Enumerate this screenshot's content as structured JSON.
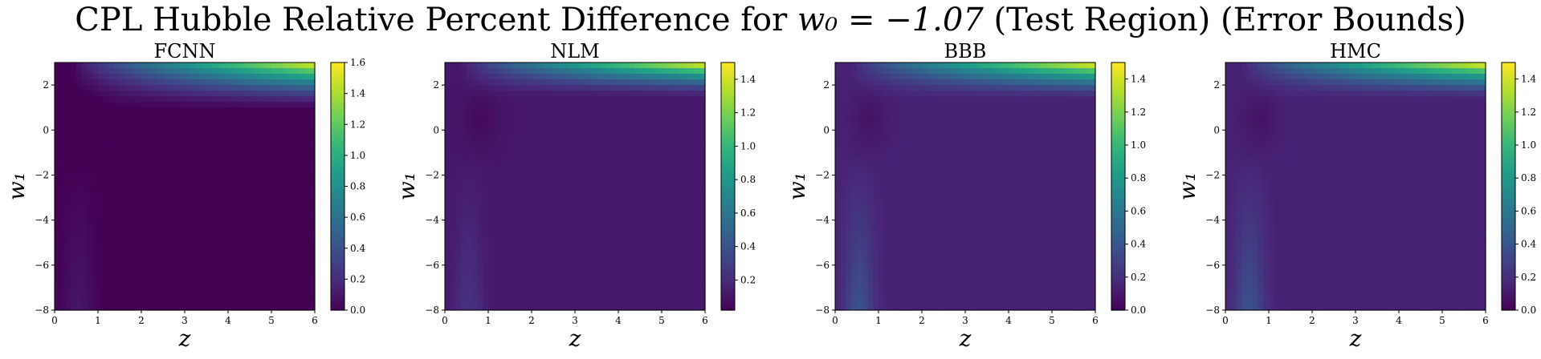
{
  "figure": {
    "title_prefix": "CPL Hubble Relative Percent Difference for ",
    "title_math": "w₀ = −1.07",
    "title_suffix": " (Test Region) (Error Bounds)"
  },
  "colormap": {
    "name": "viridis",
    "stops": [
      "#440154",
      "#482878",
      "#3e4989",
      "#31688e",
      "#26828e",
      "#1f9e89",
      "#35b779",
      "#6ece58",
      "#b5de2b",
      "#fde725"
    ]
  },
  "chart_data": [
    {
      "type": "heatmap",
      "title": "FCNN",
      "xlabel": "z",
      "ylabel": "w₁",
      "xlim": [
        0,
        6
      ],
      "ylim": [
        -8,
        3
      ],
      "xticks": [
        0,
        1,
        2,
        3,
        4,
        5,
        6
      ],
      "yticks": [
        2,
        0,
        -2,
        -4,
        -6,
        -8
      ],
      "colorbar": {
        "vmin": 0.0,
        "vmax": 1.6,
        "ticks": [
          0.0,
          0.2,
          0.4,
          0.6,
          0.8,
          1.0,
          1.2,
          1.4,
          1.6
        ],
        "tick_labels": [
          "0.0",
          "0.2",
          "0.4",
          "0.6",
          "0.8",
          "1.0",
          "1.2",
          "1.4",
          "1.6"
        ]
      },
      "field": {
        "peak": 1.6,
        "background": 0.0,
        "band_threshold_w1": 0.8,
        "low_z_band_value": 0.08,
        "mid_level": 0.0
      }
    },
    {
      "type": "heatmap",
      "title": "NLM",
      "xlabel": "z",
      "ylabel": "w₁",
      "xlim": [
        0,
        6
      ],
      "ylim": [
        -8,
        3
      ],
      "xticks": [
        0,
        1,
        2,
        3,
        4,
        5,
        6
      ],
      "yticks": [
        2,
        0,
        -2,
        -4,
        -6,
        -8
      ],
      "colorbar": {
        "vmin": 0.02,
        "vmax": 1.5,
        "ticks": [
          0.2,
          0.4,
          0.6,
          0.8,
          1.0,
          1.2,
          1.4
        ],
        "tick_labels": [
          "0.2",
          "0.4",
          "0.6",
          "0.8",
          "1.0",
          "1.2",
          "1.4"
        ]
      },
      "field": {
        "peak": 1.5,
        "background": 0.08,
        "band_threshold_w1": 1.4,
        "low_z_band_value": 0.1,
        "mid_level": 0.12
      }
    },
    {
      "type": "heatmap",
      "title": "BBB",
      "xlabel": "z",
      "ylabel": "w₁",
      "xlim": [
        0,
        6
      ],
      "ylim": [
        -8,
        3
      ],
      "xticks": [
        0,
        1,
        2,
        3,
        4,
        5,
        6
      ],
      "yticks": [
        2,
        0,
        -2,
        -4,
        -6,
        -8
      ],
      "colorbar": {
        "vmin": 0.0,
        "vmax": 1.5,
        "ticks": [
          0.0,
          0.2,
          0.4,
          0.6,
          0.8,
          1.0,
          1.2,
          1.4
        ],
        "tick_labels": [
          "0.0",
          "0.2",
          "0.4",
          "0.6",
          "0.8",
          "1.0",
          "1.2",
          "1.4"
        ]
      },
      "field": {
        "peak": 1.5,
        "background": 0.1,
        "band_threshold_w1": 1.3,
        "low_z_band_value": 0.2,
        "mid_level": 0.13
      }
    },
    {
      "type": "heatmap",
      "title": "HMC",
      "xlabel": "z",
      "ylabel": "w₁",
      "xlim": [
        0,
        6
      ],
      "ylim": [
        -8,
        3
      ],
      "xticks": [
        0,
        1,
        2,
        3,
        4,
        5,
        6
      ],
      "yticks": [
        2,
        0,
        -2,
        -4,
        -6,
        -8
      ],
      "colorbar": {
        "vmin": 0.0,
        "vmax": 1.5,
        "ticks": [
          0.0,
          0.2,
          0.4,
          0.6,
          0.8,
          1.0,
          1.2,
          1.4
        ],
        "tick_labels": [
          "0.0",
          "0.2",
          "0.4",
          "0.6",
          "0.8",
          "1.0",
          "1.2",
          "1.4"
        ]
      },
      "field": {
        "peak": 1.5,
        "background": 0.1,
        "band_threshold_w1": 1.3,
        "low_z_band_value": 0.2,
        "mid_level": 0.13
      }
    }
  ]
}
